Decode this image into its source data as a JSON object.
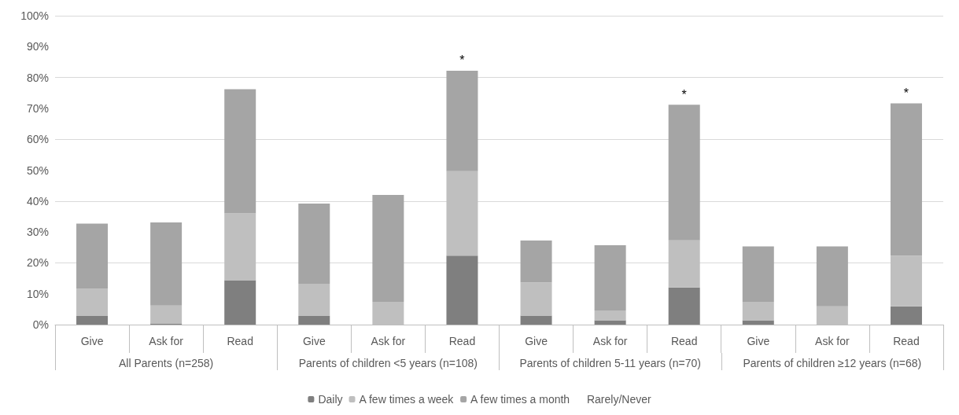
{
  "chart_data": {
    "type": "bar",
    "stacked": true,
    "categories": [
      "Give",
      "Ask for",
      "Read",
      "Give",
      "Ask for",
      "Read",
      "Give",
      "Ask for",
      "Read",
      "Give",
      "Ask for",
      "Read"
    ],
    "series": [
      {
        "name": "Daily",
        "color": "#7f7f7f",
        "values": [
          2.8,
          0.4,
          14.4,
          2.8,
          0,
          22.3,
          2.9,
          1.4,
          12,
          1.4,
          0,
          5.9
        ]
      },
      {
        "name": "A few times a week",
        "color": "#bfbfbf",
        "values": [
          8.8,
          5.8,
          21.6,
          10.4,
          7.4,
          27.4,
          10.8,
          3.2,
          15.3,
          6,
          5.9,
          16.4
        ]
      },
      {
        "name": "A few times a month",
        "color": "#a5a5a5",
        "values": [
          21.1,
          26.9,
          40.2,
          26,
          34.6,
          32.5,
          13.5,
          21.1,
          43.9,
          17.9,
          19.4,
          49.3
        ],
        "value_labels": [
          null,
          null,
          null,
          null,
          null,
          "*",
          null,
          null,
          "*",
          null,
          null,
          "*"
        ]
      },
      {
        "name": "Rarely/Never",
        "values": [
          null,
          null,
          null,
          null,
          null,
          null,
          null,
          null,
          null,
          null,
          null,
          null
        ]
      }
    ],
    "ylim": [
      0,
      100
    ],
    "yticks": [
      {
        "value": 0,
        "label": "0%"
      },
      {
        "value": 10,
        "label": "10%"
      },
      {
        "value": 20,
        "label": "20%"
      },
      {
        "value": 30,
        "label": "30%"
      },
      {
        "value": 40,
        "label": "40%"
      },
      {
        "value": 50,
        "label": "50%"
      },
      {
        "value": 60,
        "label": "60%"
      },
      {
        "value": 70,
        "label": "70%"
      },
      {
        "value": 80,
        "label": "80%"
      },
      {
        "value": 90,
        "label": "90%"
      },
      {
        "value": 100,
        "label": "100%"
      }
    ],
    "grid": "y",
    "legend": "bottom",
    "annotations": [
      "All Parents (n=258)",
      "Parents of children <5 years (n=108)",
      "Parents of children 5-11 years (n=70)",
      "Parents of children ≥12 years (n=68)"
    ]
  }
}
